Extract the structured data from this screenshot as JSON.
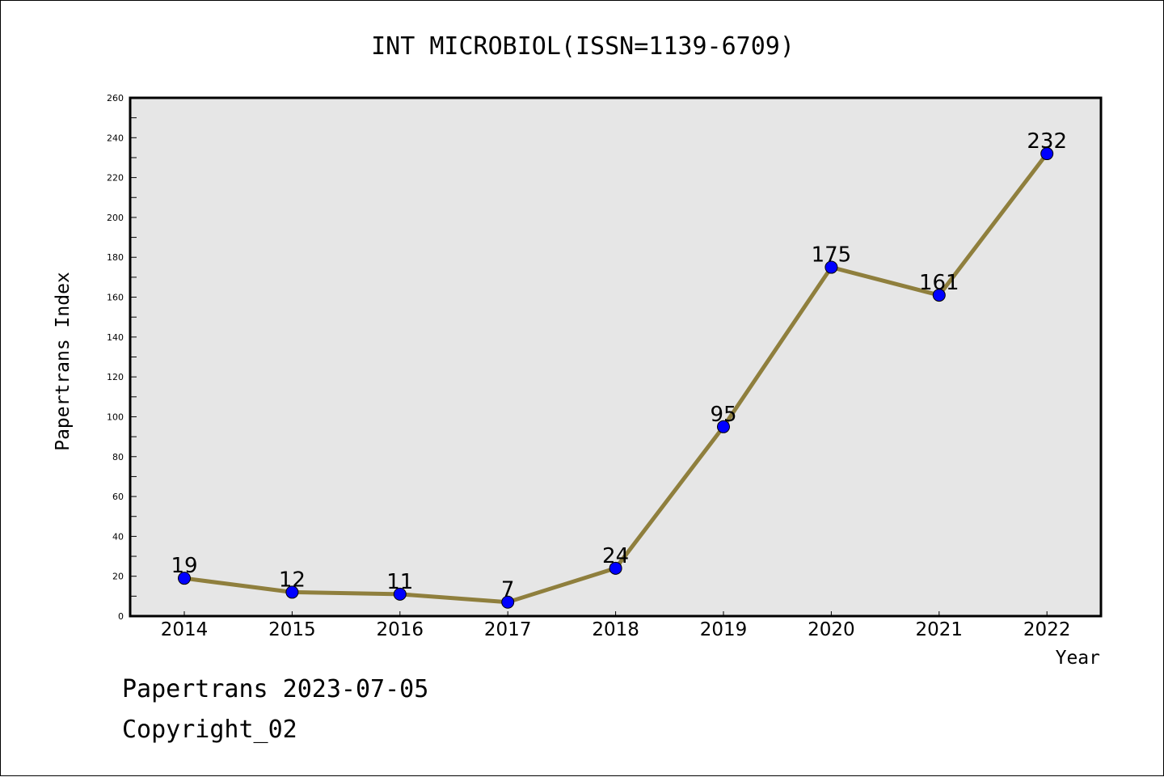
{
  "chart_data": {
    "type": "line",
    "title": "INT MICROBIOL(ISSN=1139-6709)",
    "xlabel": "Year",
    "ylabel": "Papertrans Index",
    "categories": [
      "2014",
      "2015",
      "2016",
      "2017",
      "2018",
      "2019",
      "2020",
      "2021",
      "2022"
    ],
    "series": [
      {
        "values": [
          19,
          12,
          11,
          7,
          24,
          95,
          175,
          161,
          232
        ]
      }
    ],
    "data_labels": [
      "19",
      "12",
      "11",
      "7",
      "24",
      "95",
      "175",
      "161",
      "232"
    ],
    "ylim": [
      0,
      260
    ],
    "yticks": [
      0,
      20,
      40,
      60,
      80,
      100,
      120,
      140,
      160,
      180,
      200,
      220,
      240,
      260
    ],
    "grid": false,
    "line_color": "#8f7f3d",
    "marker_color": "#0000ff",
    "plot_background": "#e6e6e6"
  },
  "footer": {
    "line1": "Papertrans 2023-07-05",
    "line2": "Copyright_02"
  }
}
